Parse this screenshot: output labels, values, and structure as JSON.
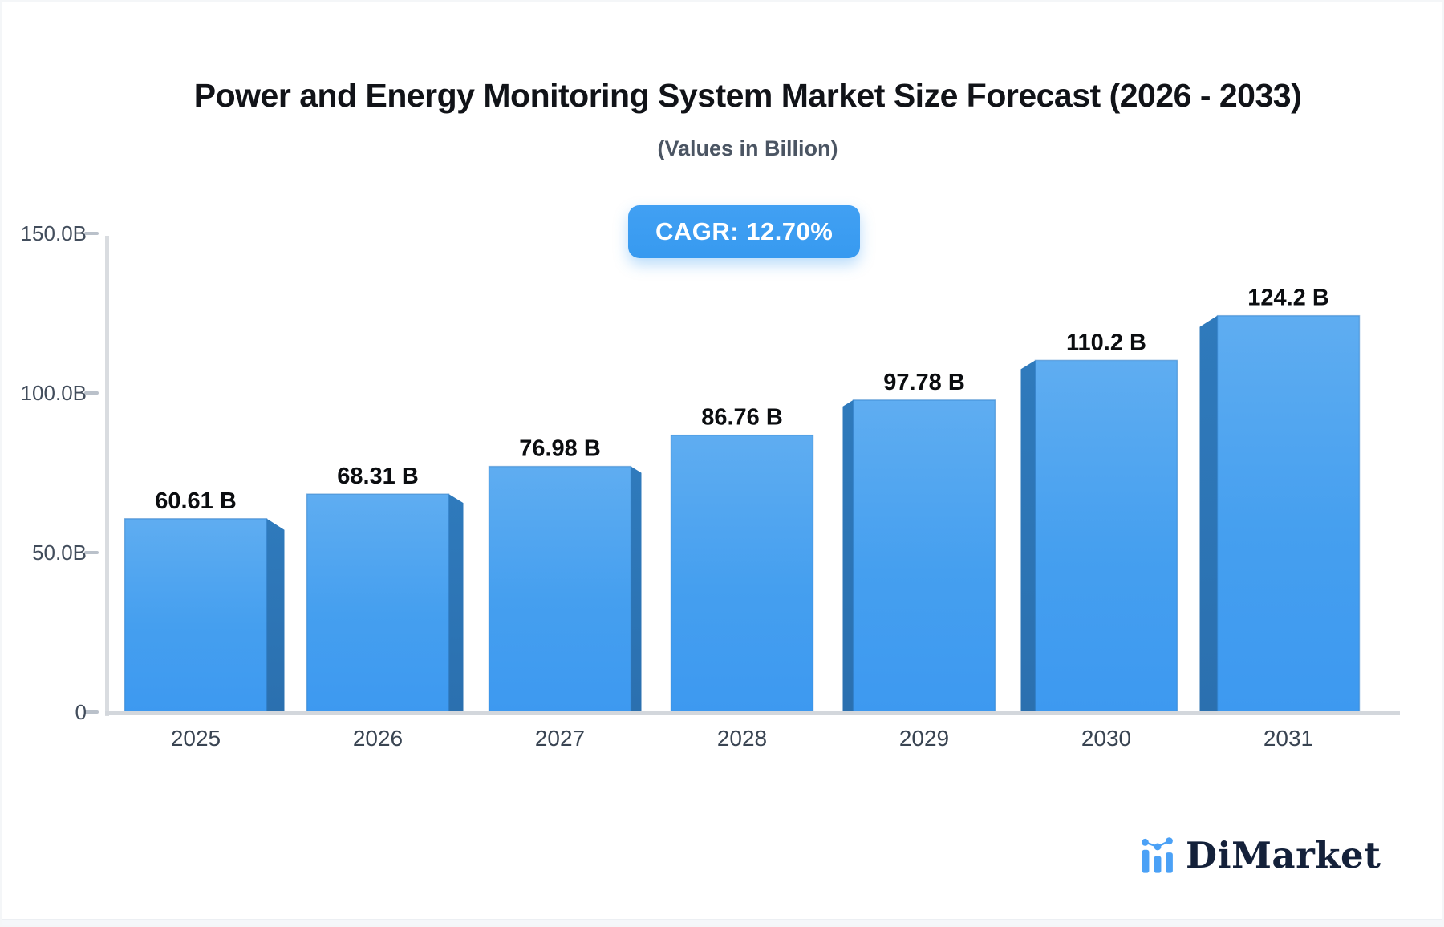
{
  "header": {
    "title": "Power and Energy Monitoring System Market Size Forecast (2026 - 2033)",
    "subtitle": "(Values in Billion)",
    "cagr_label": "CAGR: 12.70%"
  },
  "brand": {
    "name": "DiMarket",
    "icon": "bar-chart-logo-icon"
  },
  "colors": {
    "accent_blue": "#3B9BF1",
    "bar_face_top": "#5FADF1",
    "bar_face_bottom": "#3E9AEF",
    "bar_side": "#2D75B5",
    "axis_gray": "#D5D9DE",
    "tick_label": "#424D5C",
    "year_label": "#394452",
    "value_label": "#0B0D10",
    "logo_navy": "#14213A"
  },
  "chart_data": {
    "type": "bar",
    "title": "Power and Energy Monitoring System Market Size Forecast (2026 - 2033)",
    "subtitle": "(Values in Billion)",
    "categories": [
      "2025",
      "2026",
      "2027",
      "2028",
      "2029",
      "2030",
      "2031"
    ],
    "values": [
      60.61,
      68.31,
      76.98,
      86.76,
      97.78,
      110.2,
      124.2
    ],
    "value_labels": [
      "60.61 B",
      "68.31 B",
      "76.98 B",
      "86.76 B",
      "97.78 B",
      "110.2 B",
      "124.2 B"
    ],
    "xlabel": "",
    "ylabel": "",
    "ylim": [
      0,
      150
    ],
    "y_ticks": [
      {
        "value": 0,
        "label": "0"
      },
      {
        "value": 50,
        "label": "50.0B"
      },
      {
        "value": 100,
        "label": "100.0B"
      },
      {
        "value": 150,
        "label": "150.0B"
      }
    ],
    "grid": false,
    "legend": false,
    "style": "pseudo-3d-bars-center-perspective"
  }
}
